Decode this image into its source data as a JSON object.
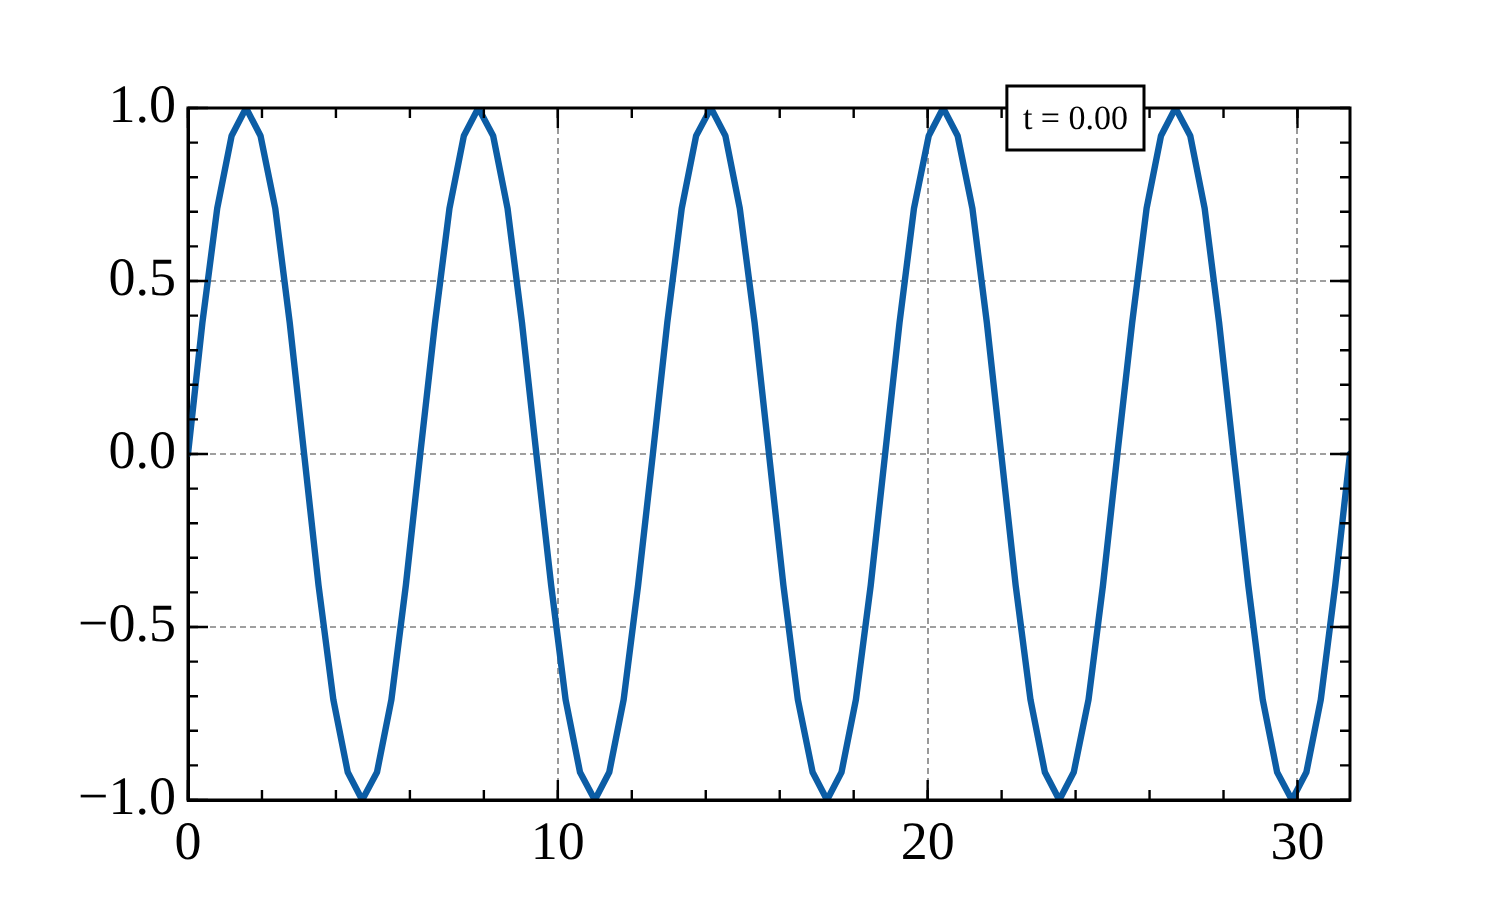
{
  "chart_data": {
    "type": "line",
    "x": [
      0,
      0.39,
      0.79,
      1.18,
      1.57,
      1.96,
      2.36,
      2.75,
      3.14,
      3.53,
      3.93,
      4.32,
      4.71,
      5.11,
      5.5,
      5.89,
      6.28,
      6.68,
      7.07,
      7.46,
      7.85,
      8.25,
      8.64,
      9.03,
      9.42,
      9.82,
      10.21,
      10.6,
      11,
      11.39,
      11.78,
      12.17,
      12.57,
      12.96,
      13.35,
      13.74,
      14.14,
      14.53,
      14.92,
      15.32,
      15.71,
      16.1,
      16.49,
      16.89,
      17.28,
      17.67,
      18.06,
      18.46,
      18.85,
      19.24,
      19.63,
      20.03,
      20.42,
      20.81,
      21.21,
      21.6,
      21.99,
      22.38,
      22.78,
      23.17,
      23.56,
      23.95,
      24.35,
      24.74,
      25.13,
      25.53,
      25.92,
      26.31,
      26.7,
      27.1,
      27.49,
      27.88,
      28.27,
      28.67,
      29.06,
      29.45,
      29.85,
      30.24,
      30.63,
      31.02,
      31.42
    ],
    "series": [
      {
        "color": "#0c5da5",
        "values": [
          0,
          0.38,
          0.71,
          0.92,
          1,
          0.92,
          0.71,
          0.38,
          0,
          -0.38,
          -0.71,
          -0.92,
          -1,
          -0.92,
          -0.71,
          -0.38,
          0,
          0.38,
          0.71,
          0.92,
          1,
          0.92,
          0.71,
          0.38,
          0,
          -0.38,
          -0.71,
          -0.92,
          -1,
          -0.92,
          -0.71,
          -0.38,
          0,
          0.38,
          0.71,
          0.92,
          1,
          0.92,
          0.71,
          0.38,
          0,
          -0.38,
          -0.71,
          -0.92,
          -1,
          -0.92,
          -0.71,
          -0.38,
          0,
          0.38,
          0.71,
          0.92,
          1,
          0.92,
          0.71,
          0.38,
          0,
          -0.38,
          -0.71,
          -0.92,
          -1,
          -0.92,
          -0.71,
          -0.38,
          0,
          0.38,
          0.71,
          0.92,
          1,
          0.92,
          0.71,
          0.38,
          0,
          -0.38,
          -0.71,
          -0.92,
          -1,
          -0.92,
          -0.71,
          -0.38,
          0
        ]
      }
    ],
    "xlim": [
      0,
      31.42
    ],
    "xticks": [
      0,
      10,
      20,
      30
    ],
    "ylim": [
      -1,
      1
    ],
    "yticks": [
      {
        "value": -1,
        "label": "−1.0"
      },
      {
        "value": -0.5,
        "label": "−0.5"
      },
      {
        "value": 0,
        "label": "0.0"
      },
      {
        "value": 0.5,
        "label": "0.5"
      },
      {
        "value": 1,
        "label": "1.0"
      }
    ],
    "grid": true,
    "marker": "none",
    "line_style": "solid",
    "legend": false,
    "annotations": [
      "t = 0.00"
    ]
  }
}
